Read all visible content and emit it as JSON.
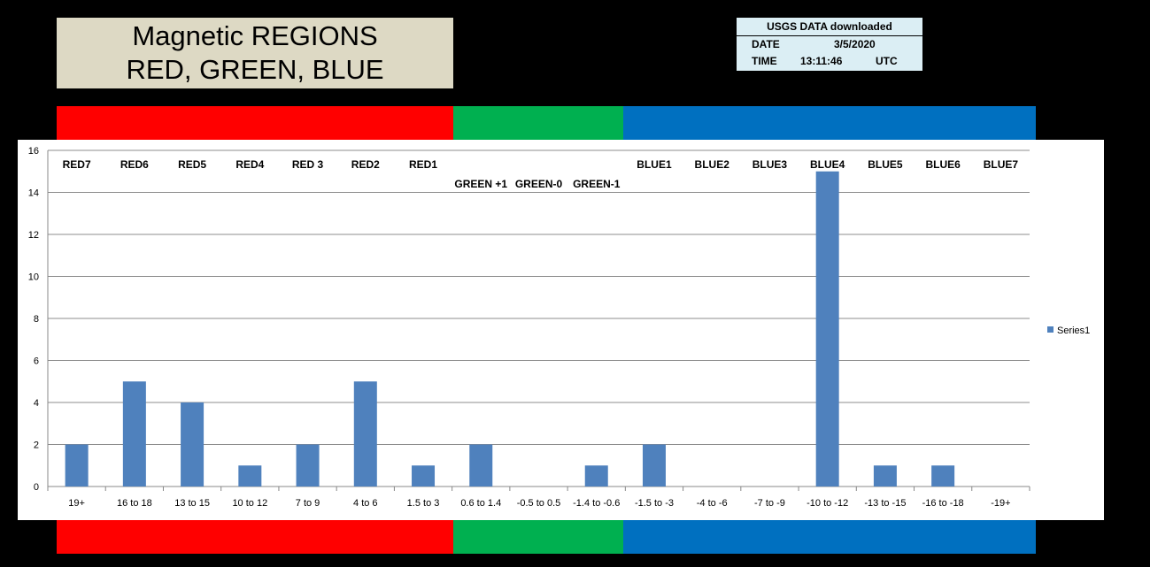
{
  "title": {
    "line1": "Magnetic REGIONS",
    "line2": "RED, GREEN, BLUE"
  },
  "info": {
    "header": "USGS DATA downloaded",
    "date_label": "DATE",
    "date_value": "3/5/2020",
    "time_label": "TIME",
    "time_value": "13:11:46",
    "time_zone": "UTC"
  },
  "colors": {
    "red": "#ff0000",
    "green": "#00b050",
    "blue": "#0070c0",
    "bar": "#4f81bd"
  },
  "chart_data": {
    "type": "bar",
    "categories": [
      "19+",
      "16 to 18",
      "13 to 15",
      "10 to 12",
      "7 to 9",
      "4 to 6",
      "1.5 to 3",
      "0.6 to 1.4",
      "-0.5 to 0.5",
      "-1.4 to -0.6",
      "-1.5 to -3",
      "-4 to -6",
      "-7 to -9",
      "-10 to -12",
      "-13 to -15",
      "-16 to -18",
      "-19+"
    ],
    "series": [
      {
        "name": "Series1",
        "values": [
          2,
          5,
          4,
          1,
          2,
          5,
          1,
          2,
          0,
          1,
          2,
          0,
          0,
          15,
          1,
          1,
          0
        ]
      }
    ],
    "region_labels": [
      "RED7",
      "RED6",
      "RED5",
      "RED4",
      "RED 3",
      "RED2",
      "RED1",
      "GREEN +1",
      "GREEN-0",
      "GREEN-1",
      "BLUE1",
      "BLUE2",
      "BLUE3",
      "BLUE4",
      "BLUE5",
      "BLUE6",
      "BLUE7"
    ],
    "yticks": [
      0,
      2,
      4,
      6,
      8,
      10,
      12,
      14,
      16
    ],
    "ylim": [
      0,
      16
    ],
    "grid": true,
    "legend_position": "right"
  }
}
